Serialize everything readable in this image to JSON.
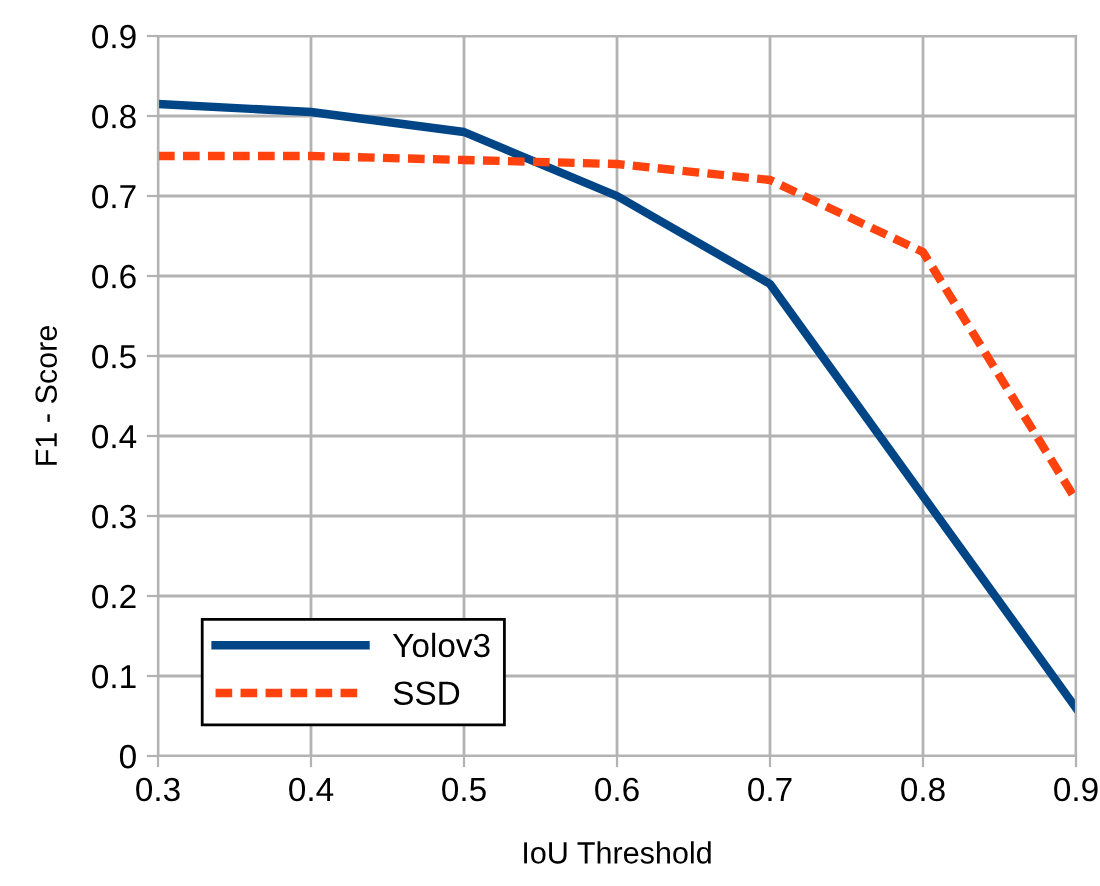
{
  "chart_data": {
    "type": "line",
    "xlabel": "IoU Threshold",
    "ylabel": "F1 - Score",
    "x": [
      0.3,
      0.4,
      0.5,
      0.6,
      0.7,
      0.8,
      0.9
    ],
    "series": [
      {
        "name": "Yolov3",
        "color": "#004586",
        "line_style": "solid",
        "values": [
          0.815,
          0.805,
          0.78,
          0.7,
          0.59,
          0.325,
          0.06
        ]
      },
      {
        "name": "SSD",
        "color": "#ff420e",
        "line_style": "dashed",
        "values": [
          0.75,
          0.75,
          0.745,
          0.74,
          0.72,
          0.63,
          0.32
        ]
      }
    ],
    "xlim": [
      0.3,
      0.9
    ],
    "xticks": [
      0.3,
      0.4,
      0.5,
      0.6,
      0.7,
      0.8,
      0.9
    ],
    "ylim": [
      0,
      0.9
    ],
    "yticks": [
      0,
      0.1,
      0.2,
      0.3,
      0.4,
      0.5,
      0.6,
      0.7,
      0.8,
      0.9
    ],
    "grid": true,
    "legend": "bottom left",
    "marker": "none"
  }
}
